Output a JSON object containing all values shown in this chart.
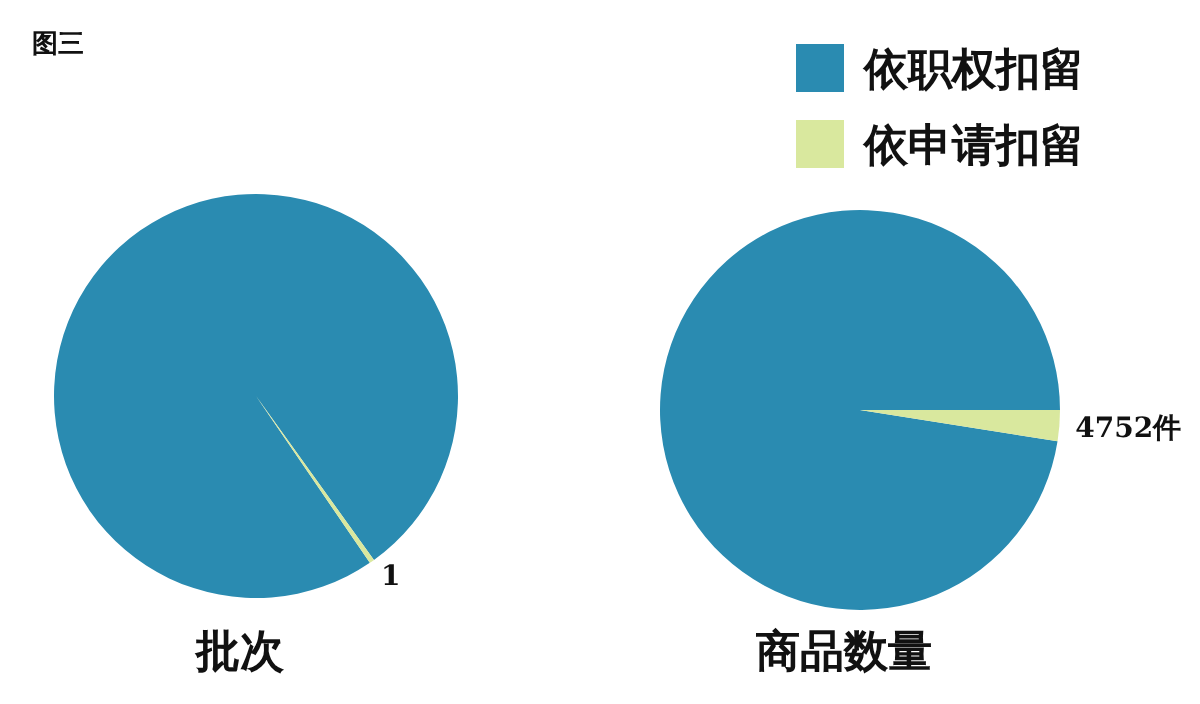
{
  "chart_data": [
    {
      "type": "pie",
      "title": "批次",
      "annotations": [
        "图三"
      ],
      "categories": [
        null,
        null
      ],
      "values": [
        250,
        1
      ],
      "colors": [
        "#2a8bb1",
        "#d9e89e"
      ],
      "value_labels": [
        null,
        "1"
      ],
      "legend": false
    },
    {
      "type": "pie",
      "title": "商品数量",
      "categories": [
        "依职权扣留",
        "依申请扣留"
      ],
      "values": [
        185000,
        4752
      ],
      "colors": [
        "#2a8bb1",
        "#d9e89e"
      ],
      "value_labels": [
        null,
        "4752件"
      ],
      "legend": "top right"
    }
  ]
}
